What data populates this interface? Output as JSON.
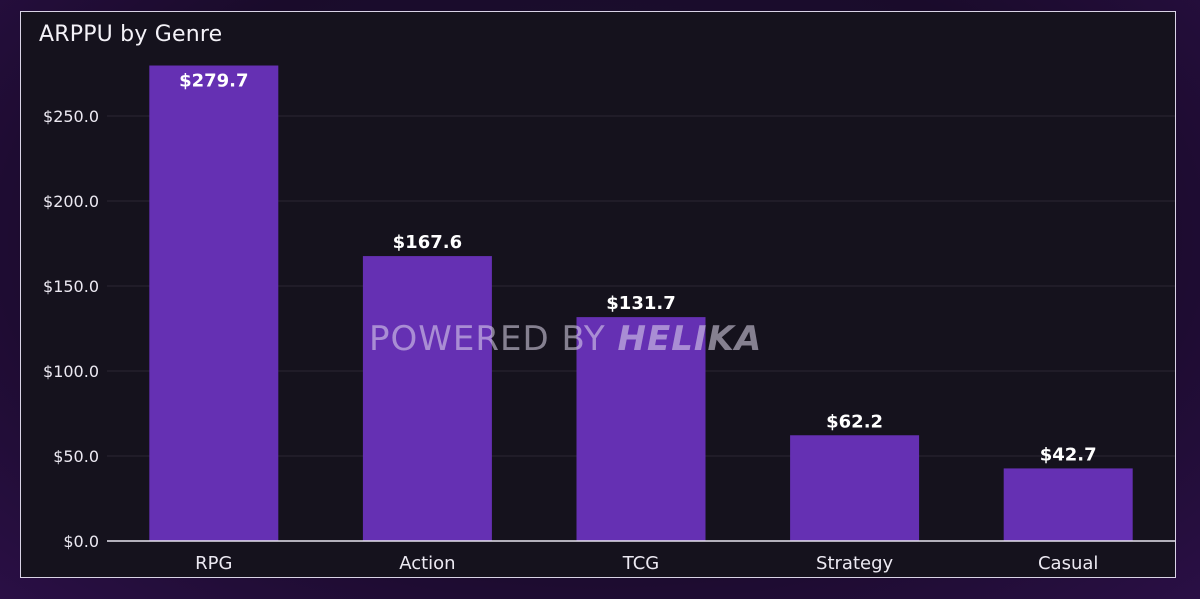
{
  "chart_data": {
    "type": "bar",
    "title": "ARPPU by Genre",
    "categories": [
      "RPG",
      "Action",
      "TCG",
      "Strategy",
      "Casual"
    ],
    "values": [
      279.7,
      167.6,
      131.7,
      62.2,
      42.7
    ],
    "data_labels": [
      "$279.7",
      "$167.6",
      "$131.7",
      "$62.2",
      "$42.7"
    ],
    "y_ticks": [
      0,
      50,
      100,
      150,
      200,
      250
    ],
    "y_tick_labels": [
      "$0.0",
      "$50.0",
      "$100.0",
      "$150.0",
      "$200.0",
      "$250.0"
    ],
    "xlabel": "",
    "ylabel": "",
    "ylim": [
      0,
      280
    ],
    "grid": true,
    "legend": "none",
    "bar_color": "#6530b3"
  },
  "watermark": {
    "prefix": "POWERED BY ",
    "brand": "HELIKA"
  }
}
